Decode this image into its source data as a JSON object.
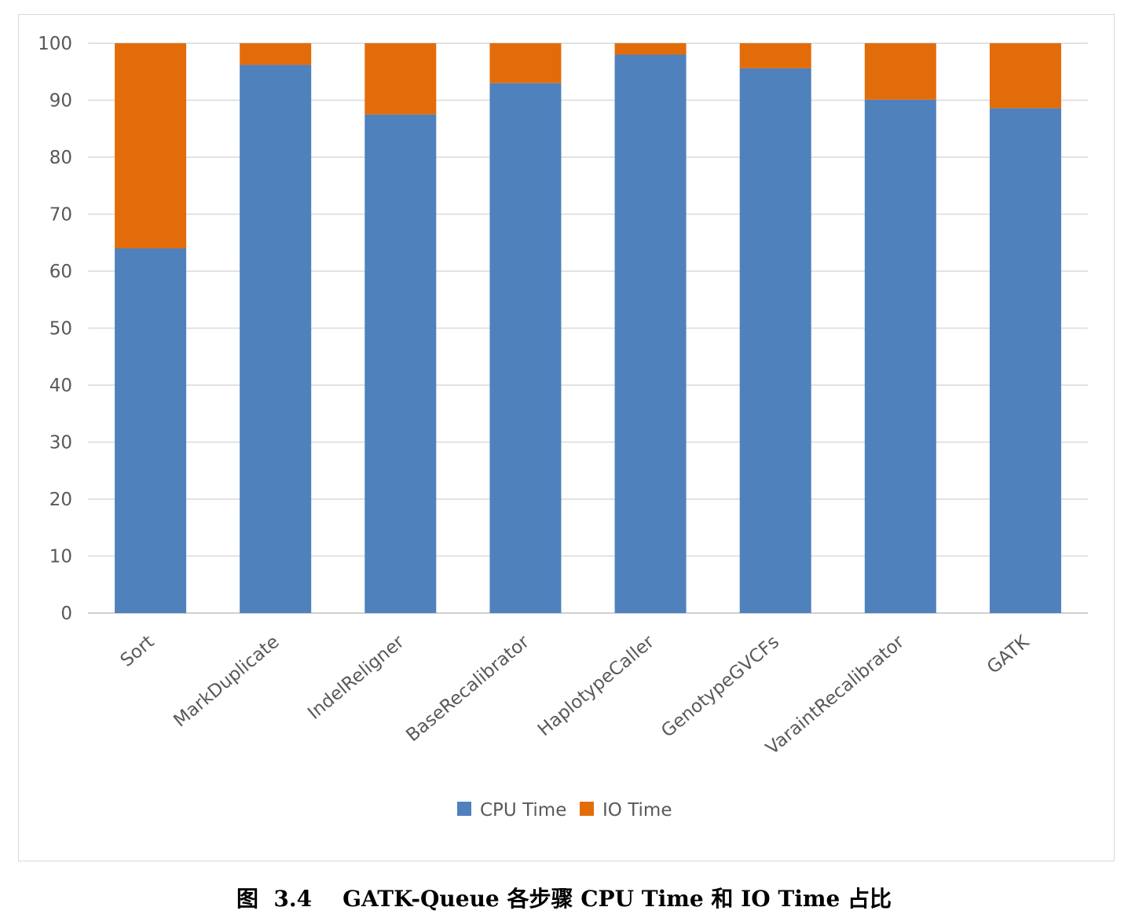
{
  "figure": {
    "caption": "图  3.4    GATK-Queue 各步骤 CPU Time 和 IO Time 占比"
  },
  "colors": {
    "cpu": "#4f81bd",
    "io": "#e36c0a",
    "grid": "#d9d9d9",
    "axis": "#bfbfbf",
    "text": "#595959"
  },
  "chart_data": {
    "type": "bar",
    "stacked": true,
    "title": "",
    "xlabel": "",
    "ylabel": "",
    "ylim": [
      0,
      100
    ],
    "yticks": [
      0,
      10,
      20,
      30,
      40,
      50,
      60,
      70,
      80,
      90,
      100
    ],
    "categories": [
      "Sort",
      "MarkDuplicate",
      "IndelReligner",
      "BaseRecalibrator",
      "HaplotypeCaller",
      "GenotypeGVCFs",
      "VaraintRecalibrator",
      "GATK"
    ],
    "series": [
      {
        "name": "CPU Time",
        "color": "#4f81bd",
        "values": [
          64,
          96.2,
          87.5,
          93,
          98,
          95.6,
          90.1,
          88.6
        ]
      },
      {
        "name": "IO Time",
        "color": "#e36c0a",
        "values": [
          36,
          3.8,
          12.5,
          7,
          2,
          4.4,
          9.9,
          11.4
        ]
      }
    ],
    "legend": {
      "position": "bottom",
      "entries": [
        "CPU Time",
        "IO Time"
      ]
    },
    "grid": true
  }
}
